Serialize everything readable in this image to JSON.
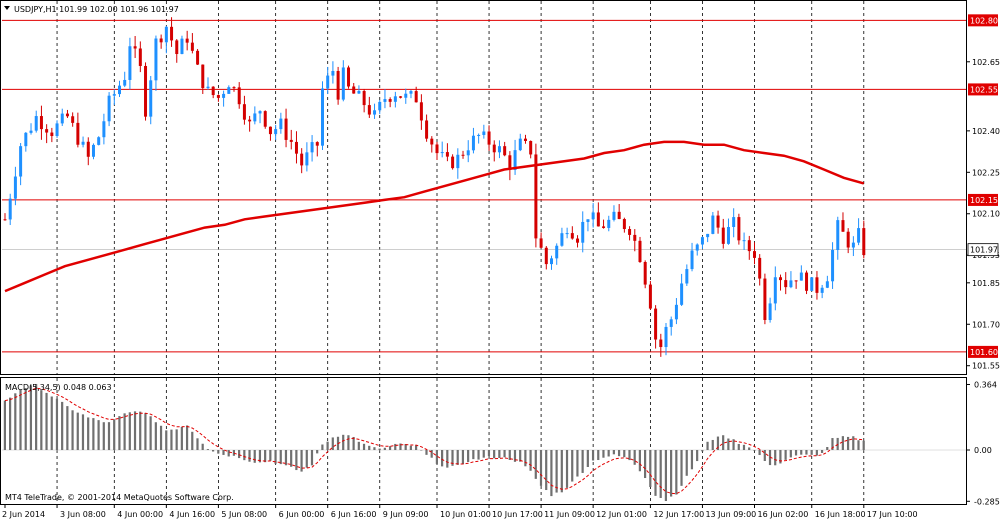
{
  "header": {
    "menu_icon": "triangle-down-icon",
    "symbol_text": "USDJPY,H1  101.99 102.00 101.96 101.97"
  },
  "macd_label": "MACD(5,34,5) 0.048 0.063",
  "footer_text": "MT4 TeleTrade, © 2001-2014 MetaQuotes Software Corp.",
  "colors": {
    "background": "#ffffff",
    "bull_candle": "#1e90ff",
    "bear_candle": "#d40000",
    "ma_line": "#e00000",
    "level_line": "#e00000",
    "level_label_bg": "#e00000",
    "current_price_label_bg": "#ffffff",
    "macd_histogram": "#707070",
    "macd_signal": "#e00000",
    "grid": "#000000"
  },
  "chart_data": {
    "type": "candlestick",
    "symbol": "USDJPY",
    "timeframe": "H1",
    "ohlc_header": {
      "open": 101.99,
      "high": 102.0,
      "low": 101.96,
      "close": 101.97
    },
    "price_axis": {
      "range": [
        101.52,
        102.87
      ],
      "ticks": [
        "102.65",
        "102.40",
        "102.25",
        "102.10",
        "101.95",
        "101.85",
        "101.70",
        "101.55"
      ]
    },
    "horizontal_levels": [
      {
        "value": 102.8,
        "label": "102.80"
      },
      {
        "value": 102.55,
        "label": "102.55"
      },
      {
        "value": 102.15,
        "label": "102.15"
      },
      {
        "value": 101.6,
        "label": "101.60"
      }
    ],
    "current_price": {
      "value": 101.97,
      "label": "101.97"
    },
    "time_axis": [
      "2 Jun 2014",
      "3 Jun 08:00",
      "4 Jun 00:00",
      "4 Jun 16:00",
      "5 Jun 08:00",
      "6 Jun 00:00",
      "6 Jun 16:00",
      "9 Jun 09:00",
      "10 Jun 01:00",
      "10 Jun 17:00",
      "11 Jun 09:00",
      "12 Jun 01:00",
      "12 Jun 17:00",
      "13 Jun 09:00",
      "16 Jun 02:00",
      "16 Jun 18:00",
      "17 Jun 10:00"
    ],
    "price_path": [
      [
        0,
        102.08
      ],
      [
        3,
        102.35
      ],
      [
        6,
        102.45
      ],
      [
        9,
        102.4
      ],
      [
        12,
        102.45
      ],
      [
        16,
        102.3
      ],
      [
        18,
        102.38
      ],
      [
        20,
        102.5
      ],
      [
        23,
        102.6
      ],
      [
        24,
        102.72
      ],
      [
        26,
        102.62
      ],
      [
        27,
        102.48
      ],
      [
        29,
        102.72
      ],
      [
        31,
        102.78
      ],
      [
        33,
        102.68
      ],
      [
        35,
        102.74
      ],
      [
        37,
        102.62
      ],
      [
        39,
        102.54
      ],
      [
        41,
        102.52
      ],
      [
        43,
        102.58
      ],
      [
        45,
        102.52
      ],
      [
        47,
        102.42
      ],
      [
        49,
        102.48
      ],
      [
        51,
        102.4
      ],
      [
        53,
        102.42
      ],
      [
        55,
        102.36
      ],
      [
        57,
        102.28
      ],
      [
        59,
        102.33
      ],
      [
        60,
        102.35
      ],
      [
        61,
        102.55
      ],
      [
        63,
        102.62
      ],
      [
        64,
        102.54
      ],
      [
        65,
        102.6
      ],
      [
        66,
        102.55
      ],
      [
        69,
        102.5
      ],
      [
        71,
        102.45
      ],
      [
        73,
        102.52
      ],
      [
        75,
        102.54
      ],
      [
        77,
        102.52
      ],
      [
        79,
        102.52
      ],
      [
        81,
        102.4
      ],
      [
        83,
        102.32
      ],
      [
        85,
        102.28
      ],
      [
        87,
        102.3
      ],
      [
        89,
        102.35
      ],
      [
        91,
        102.38
      ],
      [
        93,
        102.36
      ],
      [
        95,
        102.33
      ],
      [
        97,
        102.28
      ],
      [
        99,
        102.35
      ],
      [
        101,
        102.33
      ],
      [
        102,
        102.02
      ],
      [
        104,
        101.92
      ],
      [
        106,
        101.98
      ],
      [
        108,
        102.06
      ],
      [
        110,
        102.02
      ],
      [
        112,
        102.1
      ],
      [
        114,
        102.05
      ],
      [
        117,
        102.08
      ],
      [
        120,
        102.05
      ],
      [
        122,
        101.95
      ],
      [
        124,
        101.78
      ],
      [
        125,
        101.65
      ],
      [
        126,
        101.62
      ],
      [
        127,
        101.68
      ],
      [
        128,
        101.72
      ],
      [
        130,
        101.85
      ],
      [
        132,
        101.95
      ],
      [
        134,
        102.0
      ],
      [
        136,
        102.08
      ],
      [
        138,
        102.02
      ],
      [
        140,
        102.06
      ],
      [
        142,
        101.98
      ],
      [
        144,
        101.96
      ],
      [
        145,
        101.86
      ],
      [
        146,
        101.74
      ],
      [
        147,
        101.8
      ],
      [
        148,
        101.9
      ],
      [
        150,
        101.85
      ],
      [
        152,
        101.88
      ],
      [
        154,
        101.85
      ],
      [
        156,
        101.83
      ],
      [
        158,
        101.88
      ],
      [
        160,
        102.05
      ],
      [
        162,
        102.0
      ],
      [
        163,
        101.98
      ],
      [
        164,
        102.02
      ],
      [
        165,
        101.97
      ]
    ],
    "moving_average": {
      "values": [
        101.82,
        101.85,
        101.88,
        101.91,
        101.93,
        101.95,
        101.97,
        101.99,
        102.01,
        102.03,
        102.05,
        102.06,
        102.08,
        102.09,
        102.1,
        102.11,
        102.12,
        102.13,
        102.14,
        102.15,
        102.16,
        102.18,
        102.2,
        102.22,
        102.24,
        102.26,
        102.27,
        102.28,
        102.29,
        102.3,
        102.32,
        102.33,
        102.35,
        102.36,
        102.36,
        102.35,
        102.35,
        102.33,
        102.32,
        102.31,
        102.29,
        102.26,
        102.23,
        102.21
      ]
    },
    "macd": {
      "label": "MACD(5,34,5)",
      "value": 0.048,
      "signal_value": 0.063,
      "axis_range": [
        -0.3,
        0.4
      ],
      "axis_ticks": [
        "0.364",
        "0.00",
        "-0.285"
      ],
      "histogram_path": [
        [
          0,
          0.27
        ],
        [
          3,
          0.34
        ],
        [
          6,
          0.36
        ],
        [
          9,
          0.3
        ],
        [
          12,
          0.24
        ],
        [
          16,
          0.18
        ],
        [
          20,
          0.15
        ],
        [
          23,
          0.2
        ],
        [
          26,
          0.22
        ],
        [
          29,
          0.16
        ],
        [
          31,
          0.11
        ],
        [
          33,
          0.12
        ],
        [
          35,
          0.14
        ],
        [
          37,
          0.07
        ],
        [
          39,
          0.01
        ],
        [
          41,
          -0.02
        ],
        [
          43,
          -0.03
        ],
        [
          45,
          -0.04
        ],
        [
          47,
          -0.06
        ],
        [
          49,
          -0.07
        ],
        [
          51,
          -0.06
        ],
        [
          53,
          -0.08
        ],
        [
          55,
          -0.1
        ],
        [
          57,
          -0.12
        ],
        [
          59,
          -0.08
        ],
        [
          61,
          0.03
        ],
        [
          63,
          0.07
        ],
        [
          65,
          0.09
        ],
        [
          67,
          0.07
        ],
        [
          69,
          0.03
        ],
        [
          71,
          0.01
        ],
        [
          73,
          0.01
        ],
        [
          75,
          0.03
        ],
        [
          77,
          0.03
        ],
        [
          79,
          0.02
        ],
        [
          81,
          -0.03
        ],
        [
          83,
          -0.07
        ],
        [
          85,
          -0.1
        ],
        [
          87,
          -0.09
        ],
        [
          89,
          -0.06
        ],
        [
          91,
          -0.05
        ],
        [
          93,
          -0.04
        ],
        [
          95,
          -0.04
        ],
        [
          97,
          -0.05
        ],
        [
          99,
          -0.07
        ],
        [
          101,
          -0.12
        ],
        [
          103,
          -0.2
        ],
        [
          105,
          -0.25
        ],
        [
          107,
          -0.23
        ],
        [
          109,
          -0.18
        ],
        [
          111,
          -0.12
        ],
        [
          113,
          -0.06
        ],
        [
          115,
          -0.04
        ],
        [
          117,
          -0.03
        ],
        [
          119,
          -0.04
        ],
        [
          121,
          -0.08
        ],
        [
          123,
          -0.15
        ],
        [
          125,
          -0.25
        ],
        [
          127,
          -0.28
        ],
        [
          129,
          -0.24
        ],
        [
          131,
          -0.15
        ],
        [
          133,
          -0.06
        ],
        [
          135,
          0.04
        ],
        [
          137,
          0.08
        ],
        [
          139,
          0.07
        ],
        [
          141,
          0.04
        ],
        [
          143,
          0.02
        ],
        [
          145,
          -0.03
        ],
        [
          147,
          -0.09
        ],
        [
          149,
          -0.07
        ],
        [
          151,
          -0.04
        ],
        [
          153,
          -0.03
        ],
        [
          155,
          -0.03
        ],
        [
          157,
          -0.02
        ],
        [
          159,
          0.06
        ],
        [
          161,
          0.07
        ],
        [
          163,
          0.07
        ],
        [
          165,
          0.048
        ]
      ]
    }
  }
}
